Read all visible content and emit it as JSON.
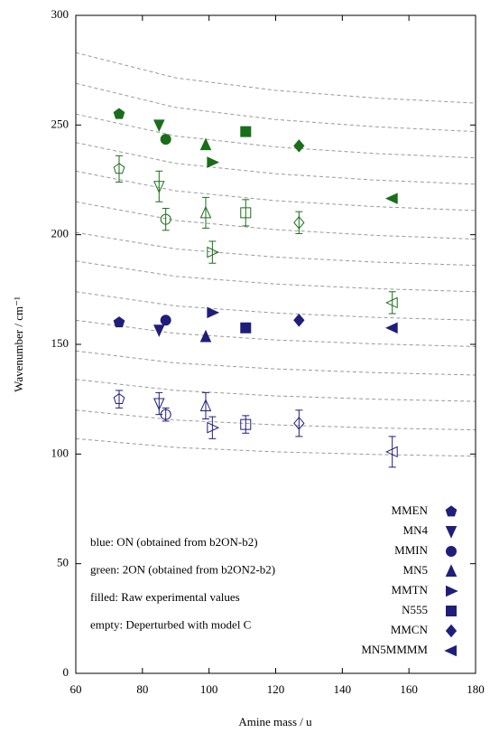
{
  "chart_data": {
    "type": "scatter",
    "xlabel": "Amine mass / u",
    "ylabel": "Wavenumber / cm⁻¹",
    "xlim": [
      60,
      180
    ],
    "xticks": [
      60,
      80,
      100,
      120,
      140,
      160,
      180
    ],
    "ylim": [
      0,
      300
    ],
    "yticks": [
      0,
      50,
      100,
      150,
      200,
      250,
      300
    ],
    "colors": {
      "on": "#1f1f7a",
      "twoon": "#1a6e1a",
      "curves": "#999999"
    },
    "annotations": [
      "blue: ON (obtained from b2ON-b2)",
      "green: 2ON (obtained from b2ON2-b2)",
      "filled: Raw experimental values",
      "empty: Deperturbed with model C"
    ],
    "series": [
      {
        "name": "MMEN",
        "marker": "pentagon",
        "x": 73,
        "on_raw": 160,
        "twoon_raw": 255,
        "on_dep": 125,
        "on_err": 4,
        "twoon_dep": 230,
        "twoon_err": 6
      },
      {
        "name": "MN4",
        "marker": "triangle-down",
        "x": 85,
        "on_raw": 156.5,
        "twoon_raw": 250,
        "on_dep": 123,
        "on_err": 5,
        "twoon_dep": 222,
        "twoon_err": 7
      },
      {
        "name": "MMIN",
        "marker": "circle",
        "x": 87,
        "on_raw": 161,
        "twoon_raw": 243.5,
        "on_dep": 118,
        "on_err": 3,
        "twoon_dep": 207,
        "twoon_err": 5
      },
      {
        "name": "MN5",
        "marker": "triangle-up",
        "x": 99,
        "on_raw": 153.5,
        "twoon_raw": 241,
        "on_dep": 122,
        "on_err": 6,
        "twoon_dep": 210,
        "twoon_err": 7
      },
      {
        "name": "MMTN",
        "marker": "triangle-right",
        "x": 101,
        "on_raw": 164.5,
        "twoon_raw": 233,
        "on_dep": 112,
        "on_err": 5,
        "twoon_dep": 192,
        "twoon_err": 5
      },
      {
        "name": "N555",
        "marker": "square",
        "x": 111,
        "on_raw": 157.5,
        "twoon_raw": 247,
        "on_dep": 113.5,
        "on_err": 4,
        "twoon_dep": 210,
        "twoon_err": 6
      },
      {
        "name": "MMCN",
        "marker": "diamond",
        "x": 127,
        "on_raw": 161,
        "twoon_raw": 240.5,
        "on_dep": 114,
        "on_err": 6,
        "twoon_dep": 205.5,
        "twoon_err": 5
      },
      {
        "name": "MN5MMMM",
        "marker": "triangle-left",
        "x": 155,
        "on_raw": 157.5,
        "twoon_raw": 216.5,
        "on_dep": 101,
        "on_err": 7,
        "twoon_dep": 169,
        "twoon_err": 5
      }
    ],
    "model_curves": {
      "x": [
        60,
        90,
        120,
        150,
        180
      ],
      "values": [
        [
          283,
          271.5,
          265.8,
          262.3,
          260
        ],
        [
          269,
          258,
          252.5,
          249.2,
          247
        ],
        [
          255,
          245,
          240,
          237,
          235
        ],
        [
          242,
          232.5,
          227.8,
          224.9,
          223
        ],
        [
          229,
          220,
          215.5,
          212.8,
          211
        ],
        [
          215,
          206.5,
          202.3,
          199.7,
          198
        ],
        [
          201,
          193.5,
          189.8,
          187.5,
          186
        ],
        [
          188,
          181,
          177.5,
          175.4,
          174
        ],
        [
          174,
          167.5,
          164.3,
          162.3,
          161
        ],
        [
          161,
          155,
          152,
          150.2,
          149
        ],
        [
          147,
          141.5,
          138.8,
          137.1,
          136
        ],
        [
          134,
          129,
          126.5,
          125,
          124
        ],
        [
          120,
          115.5,
          113.3,
          111.9,
          111
        ],
        [
          107,
          103,
          101,
          99.8,
          99
        ]
      ]
    }
  }
}
